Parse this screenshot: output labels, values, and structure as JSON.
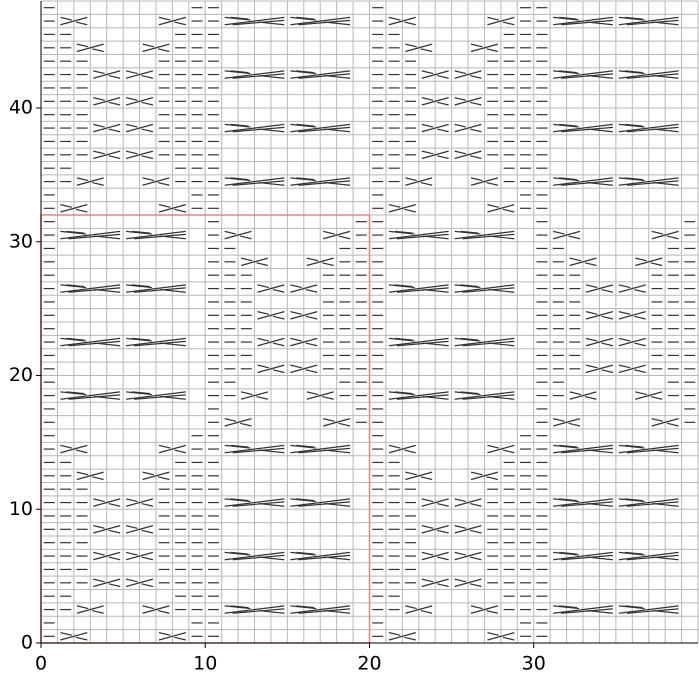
{
  "chart_data": {
    "type": "grid",
    "xlim": [
      0,
      40
    ],
    "ylim": [
      0,
      48
    ],
    "xticks": [
      0,
      10,
      20,
      30
    ],
    "yticks": [
      0,
      10,
      20,
      30,
      40
    ],
    "grid": true,
    "highlight": {
      "x": [
        0,
        20
      ],
      "y": [
        0,
        32
      ],
      "color": "#f08080"
    }
  }
}
